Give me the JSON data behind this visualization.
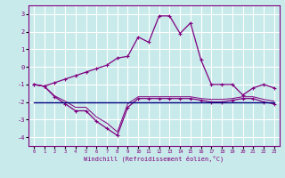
{
  "xlabel": "Windchill (Refroidissement éolien,°C)",
  "bg_color": "#c8eaea",
  "grid_color": "#ffffff",
  "line_color": "#800080",
  "flat_line_color": "#000080",
  "xlim": [
    -0.5,
    23.5
  ],
  "ylim": [
    -4.5,
    3.5
  ],
  "yticks": [
    -4,
    -3,
    -2,
    -1,
    0,
    1,
    2,
    3
  ],
  "xticks": [
    0,
    1,
    2,
    3,
    4,
    5,
    6,
    7,
    8,
    9,
    10,
    11,
    12,
    13,
    14,
    15,
    16,
    17,
    18,
    19,
    20,
    21,
    22,
    23
  ],
  "xtick_labels": [
    "0",
    "1",
    "2",
    "3",
    "4",
    "5",
    "6",
    "7",
    "8",
    "9",
    "10",
    "11",
    "12",
    "13",
    "14",
    "15",
    "16",
    "17",
    "18",
    "19",
    "20",
    "21",
    "22",
    "23"
  ],
  "series1_x": [
    0,
    1,
    2,
    3,
    4,
    5,
    6,
    7,
    8,
    9,
    10,
    11,
    12,
    13,
    14,
    15,
    16,
    17,
    18,
    19,
    20,
    21,
    22,
    23
  ],
  "series1_y": [
    -1.0,
    -1.1,
    -0.9,
    -0.7,
    -0.5,
    -0.3,
    -0.1,
    0.1,
    0.5,
    0.6,
    1.7,
    1.4,
    2.9,
    2.9,
    1.9,
    2.5,
    0.4,
    -1.0,
    -1.0,
    -1.0,
    -1.6,
    -1.2,
    -1.0,
    -1.2
  ],
  "series2_x": [
    0,
    1,
    2,
    3,
    4,
    5,
    6,
    7,
    8,
    9,
    10,
    11,
    12,
    13,
    14,
    15,
    16,
    17,
    18,
    19,
    20,
    21,
    22,
    23
  ],
  "series2_y": [
    -1.0,
    -1.1,
    -1.7,
    -2.1,
    -2.5,
    -2.5,
    -3.1,
    -3.5,
    -3.9,
    -2.3,
    -1.8,
    -1.8,
    -1.8,
    -1.8,
    -1.8,
    -1.8,
    -1.9,
    -2.0,
    -2.0,
    -1.9,
    -1.8,
    -1.8,
    -2.0,
    -2.1
  ],
  "series3_x": [
    0,
    1,
    2,
    3,
    4,
    5,
    6,
    7,
    8,
    9,
    10,
    11,
    12,
    13,
    14,
    15,
    16,
    17,
    18,
    19,
    20,
    21,
    22,
    23
  ],
  "series3_y": [
    -1.0,
    -1.1,
    -1.65,
    -1.95,
    -2.3,
    -2.3,
    -2.85,
    -3.2,
    -3.7,
    -2.1,
    -1.7,
    -1.7,
    -1.7,
    -1.7,
    -1.7,
    -1.7,
    -1.8,
    -1.85,
    -1.85,
    -1.8,
    -1.7,
    -1.7,
    -1.85,
    -1.95
  ],
  "flat_line_x": [
    0,
    23
  ],
  "flat_line_y": [
    -2.0,
    -2.0
  ]
}
